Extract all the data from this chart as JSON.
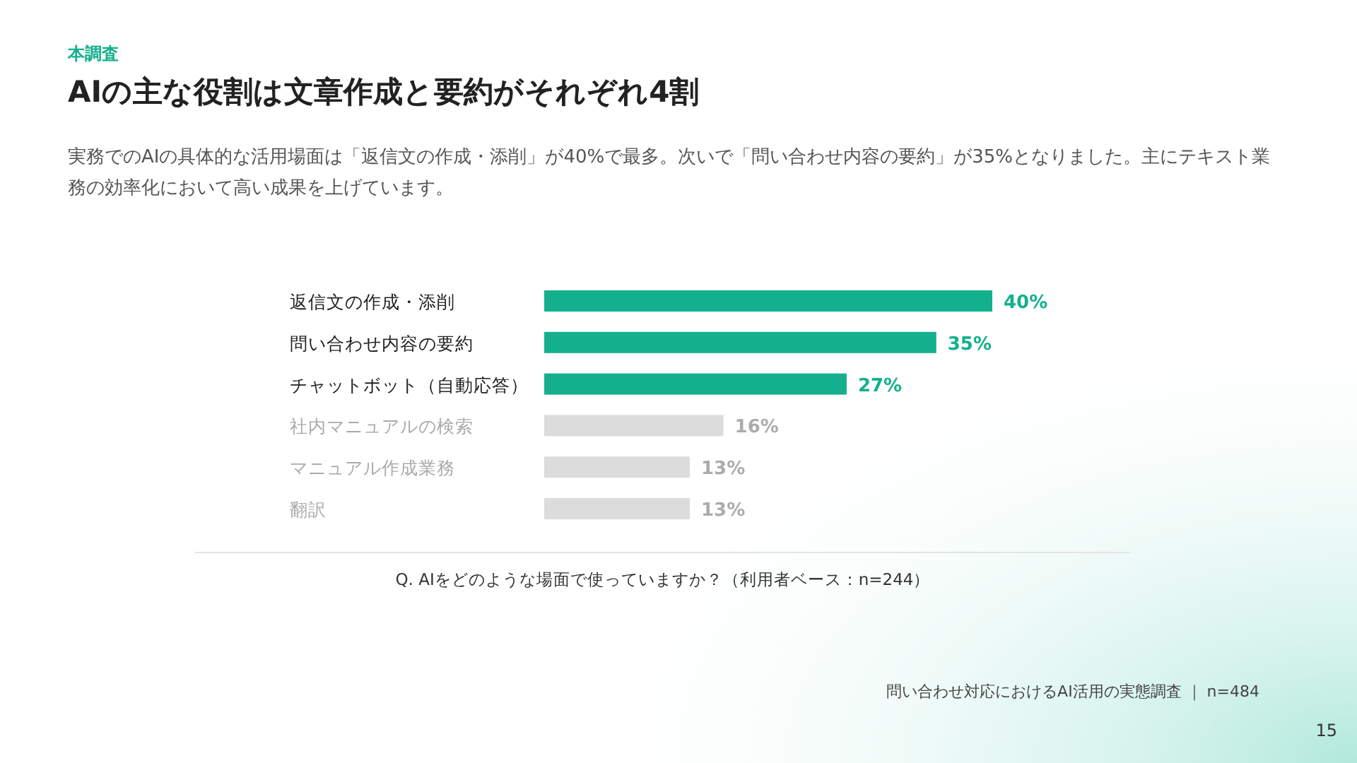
{
  "chart_data": {
    "type": "bar",
    "orientation": "horizontal",
    "title": "AIの主な役割は文章作成と要約がそれぞれ4割",
    "subtitle": "実務でのAIの具体的な活用場面は「返信文の作成・添削」が40%で最多。次いで「問い合わせ内容の要約」が35%となりました。主にテキスト業務の効率化において高い成果を上げています。",
    "categories": [
      "返信文の作成・添削",
      "問い合わせ内容の要約",
      "チャットボット（自動応答）",
      "社内マニュアルの検索",
      "マニュアル作成業務",
      "翻訳"
    ],
    "values": [
      40,
      35,
      27,
      16,
      13,
      13
    ],
    "value_labels": [
      "40%",
      "35%",
      "27%",
      "16%",
      "13%",
      "13%"
    ],
    "colors": [
      "#14b08e",
      "#14b08e",
      "#14b08e",
      "#dcdcdc",
      "#dcdcdc",
      "#dcdcdc"
    ],
    "annotations": [
      "本調査",
      "Q. AIをどのような場面で使っていますか？（利用者ベース：n=244）",
      "問い合わせ対応におけるAI活用の実態調査 ｜ n=484",
      "15"
    ]
  }
}
